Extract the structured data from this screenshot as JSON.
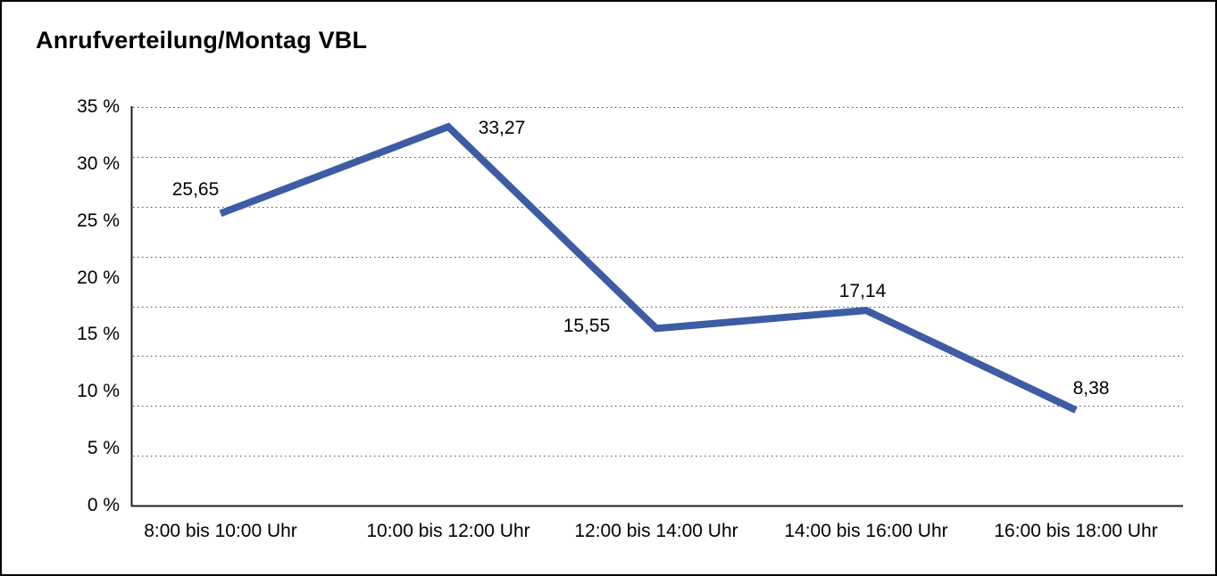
{
  "title": "Anrufverteilung/Montag VBL",
  "chart_data": {
    "type": "line",
    "title": "Anrufverteilung/Montag VBL",
    "categories": [
      "8:00 bis 10:00 Uhr",
      "10:00 bis 12:00 Uhr",
      "12:00 bis 14:00 Uhr",
      "14:00 bis 16:00 Uhr",
      "16:00 bis 18:00 Uhr"
    ],
    "values": [
      25.65,
      33.27,
      15.55,
      17.14,
      8.38
    ],
    "value_labels": [
      "25,65",
      "33,27",
      "15,55",
      "17,14",
      "8,38"
    ],
    "y_tick_labels": [
      "35 %",
      "30 %",
      "25 %",
      "20 %",
      "15 %",
      "10 %",
      "5 %",
      "0 %"
    ],
    "ylim": [
      0,
      35
    ],
    "xlabel": "",
    "ylabel": "",
    "unit": "%",
    "legend": "none",
    "grid": "horizontal-dotted",
    "colors": {
      "line": "#3C5CA3",
      "grid_dots": "#4d4d4d",
      "axis": "#1f1f1f",
      "text": "#000000",
      "frame_border": "#000000",
      "background": "#ffffff"
    }
  }
}
